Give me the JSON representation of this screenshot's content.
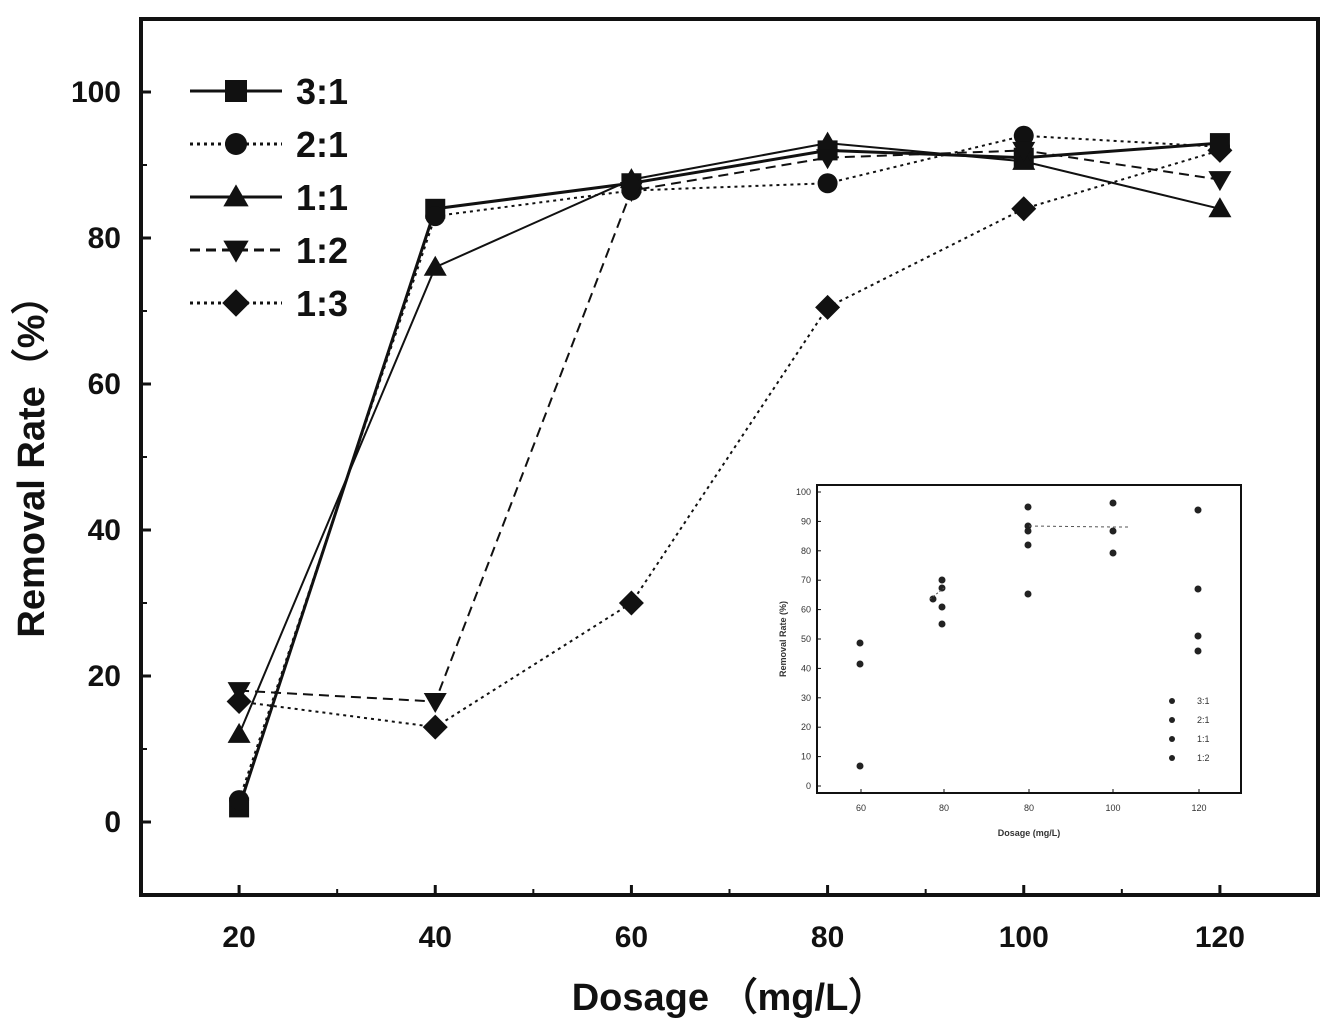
{
  "chart_data": {
    "type": "line",
    "xlabel": "Dosage （mg/L）",
    "ylabel": "Removal Rate（%）",
    "xlim": [
      10,
      130
    ],
    "ylim": [
      -10,
      110
    ],
    "x_ticks": [
      20,
      40,
      60,
      80,
      100,
      120
    ],
    "y_ticks": [
      0,
      20,
      40,
      60,
      80,
      100
    ],
    "x": [
      20,
      40,
      60,
      80,
      100,
      120
    ],
    "legend_position": "top-left",
    "grid": false,
    "series": [
      {
        "name": "3:1",
        "marker": "square",
        "dash": "solid",
        "values": [
          2,
          84,
          87.5,
          92,
          91,
          93
        ]
      },
      {
        "name": "2:1",
        "marker": "circle",
        "dash": "dotted",
        "values": [
          3,
          83,
          86.5,
          87.5,
          94,
          92.5
        ]
      },
      {
        "name": "1:1",
        "marker": "triangle-up",
        "dash": "solid",
        "values": [
          12,
          76,
          88,
          93,
          90.5,
          84
        ]
      },
      {
        "name": "1:2",
        "marker": "triangle-down",
        "dash": "dashed",
        "values": [
          18,
          16.5,
          86.5,
          91,
          92,
          88
        ]
      },
      {
        "name": "1:3",
        "marker": "diamond",
        "dash": "dotted",
        "values": [
          16.5,
          13,
          30,
          70.5,
          84,
          92
        ]
      }
    ],
    "inset": {
      "type": "scatter",
      "xlabel": "Dosage (mg/L)",
      "ylabel": "Removal Rate (%)",
      "x_ticks": [
        "60",
        "80",
        "80",
        "100",
        "120"
      ],
      "y_ticks": [
        "0",
        "10",
        "20",
        "30",
        "40",
        "50",
        "60",
        "70",
        "80",
        "90",
        "100"
      ],
      "legend": [
        "3:1",
        "2:1",
        "1:1",
        "1:2"
      ]
    }
  }
}
